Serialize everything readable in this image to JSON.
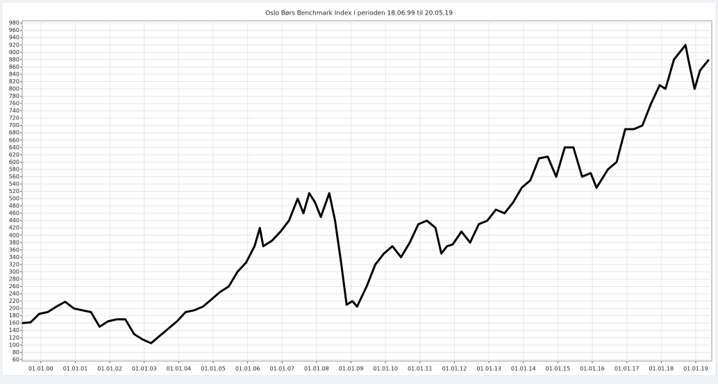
{
  "chart_data": {
    "type": "line",
    "title": "Oslo Børs Benchmark Index i perioden 18.06.99 til 20.05.19",
    "color": "#000000",
    "grid": true,
    "x": [
      "1999-06-18",
      "1999-09-15",
      "1999-12-15",
      "2000-03-15",
      "2000-06-15",
      "2000-09-15",
      "2000-12-15",
      "2001-03-15",
      "2001-06-15",
      "2001-09-15",
      "2001-12-15",
      "2002-03-15",
      "2002-06-15",
      "2002-09-15",
      "2002-12-15",
      "2003-03-15",
      "2003-06-15",
      "2003-09-15",
      "2003-12-15",
      "2004-03-15",
      "2004-06-15",
      "2004-09-15",
      "2004-12-15",
      "2005-03-15",
      "2005-06-15",
      "2005-09-15",
      "2005-12-15",
      "2006-03-15",
      "2006-05-10",
      "2006-06-15",
      "2006-09-15",
      "2006-12-15",
      "2007-03-15",
      "2007-06-15",
      "2007-08-15",
      "2007-10-15",
      "2007-12-15",
      "2008-02-15",
      "2008-05-15",
      "2008-07-15",
      "2008-09-15",
      "2008-11-15",
      "2009-01-15",
      "2009-03-05",
      "2009-06-15",
      "2009-09-15",
      "2009-12-15",
      "2010-03-15",
      "2010-06-15",
      "2010-09-15",
      "2010-12-15",
      "2011-03-15",
      "2011-06-15",
      "2011-08-15",
      "2011-10-15",
      "2011-12-15",
      "2012-03-15",
      "2012-06-15",
      "2012-09-15",
      "2012-12-15",
      "2013-03-15",
      "2013-06-15",
      "2013-09-15",
      "2013-12-15",
      "2014-03-15",
      "2014-06-15",
      "2014-09-15",
      "2014-12-15",
      "2015-03-15",
      "2015-06-15",
      "2015-09-15",
      "2015-12-15",
      "2016-02-15",
      "2016-06-15",
      "2016-09-15",
      "2016-12-15",
      "2017-03-15",
      "2017-06-15",
      "2017-09-15",
      "2017-12-15",
      "2018-02-15",
      "2018-05-15",
      "2018-09-15",
      "2018-10-15",
      "2018-12-20",
      "2019-02-15",
      "2019-05-20"
    ],
    "values": [
      160,
      162,
      185,
      190,
      205,
      218,
      200,
      195,
      190,
      150,
      165,
      170,
      170,
      130,
      115,
      105,
      125,
      145,
      165,
      190,
      195,
      205,
      225,
      245,
      260,
      300,
      325,
      370,
      420,
      370,
      385,
      410,
      440,
      500,
      460,
      515,
      490,
      450,
      515,
      440,
      330,
      210,
      220,
      205,
      260,
      320,
      350,
      370,
      340,
      380,
      430,
      440,
      420,
      350,
      370,
      375,
      410,
      380,
      430,
      440,
      470,
      460,
      490,
      530,
      550,
      610,
      615,
      560,
      640,
      640,
      560,
      570,
      530,
      580,
      600,
      690,
      690,
      700,
      760,
      810,
      800,
      880,
      920,
      880,
      800,
      850,
      880
    ],
    "xlim": [
      "1999-06-18",
      "2019-06-20"
    ],
    "xticks": [
      {
        "value": "2000-01-01",
        "label": "01.01.00"
      },
      {
        "value": "2001-01-01",
        "label": "01.01.01"
      },
      {
        "value": "2002-01-01",
        "label": "01.01.02"
      },
      {
        "value": "2003-01-01",
        "label": "01.01.03"
      },
      {
        "value": "2004-01-01",
        "label": "01.01.04"
      },
      {
        "value": "2005-01-01",
        "label": "01.01.05"
      },
      {
        "value": "2006-01-01",
        "label": "01.01.06"
      },
      {
        "value": "2007-01-01",
        "label": "01.01.07"
      },
      {
        "value": "2008-01-01",
        "label": "01.01.08"
      },
      {
        "value": "2009-01-01",
        "label": "01.01.09"
      },
      {
        "value": "2010-01-01",
        "label": "01.01.10"
      },
      {
        "value": "2011-01-01",
        "label": "01.01.11"
      },
      {
        "value": "2012-01-01",
        "label": "01.01.12"
      },
      {
        "value": "2013-01-01",
        "label": "01.01.13"
      },
      {
        "value": "2014-01-01",
        "label": "01.01.14"
      },
      {
        "value": "2015-01-01",
        "label": "01.01.15"
      },
      {
        "value": "2016-01-01",
        "label": "01.01.16"
      },
      {
        "value": "2017-01-01",
        "label": "01.01.17"
      },
      {
        "value": "2018-01-01",
        "label": "01.01.18"
      },
      {
        "value": "2019-01-01",
        "label": "01.01.19"
      }
    ],
    "ylim": [
      56,
      986
    ],
    "yticks": [
      60,
      80,
      100,
      120,
      140,
      160,
      180,
      200,
      220,
      240,
      260,
      280,
      300,
      320,
      340,
      360,
      380,
      400,
      420,
      440,
      460,
      480,
      500,
      520,
      540,
      560,
      580,
      600,
      620,
      640,
      660,
      680,
      700,
      720,
      740,
      760,
      780,
      800,
      820,
      840,
      860,
      880,
      900,
      920,
      940,
      960,
      980
    ]
  }
}
